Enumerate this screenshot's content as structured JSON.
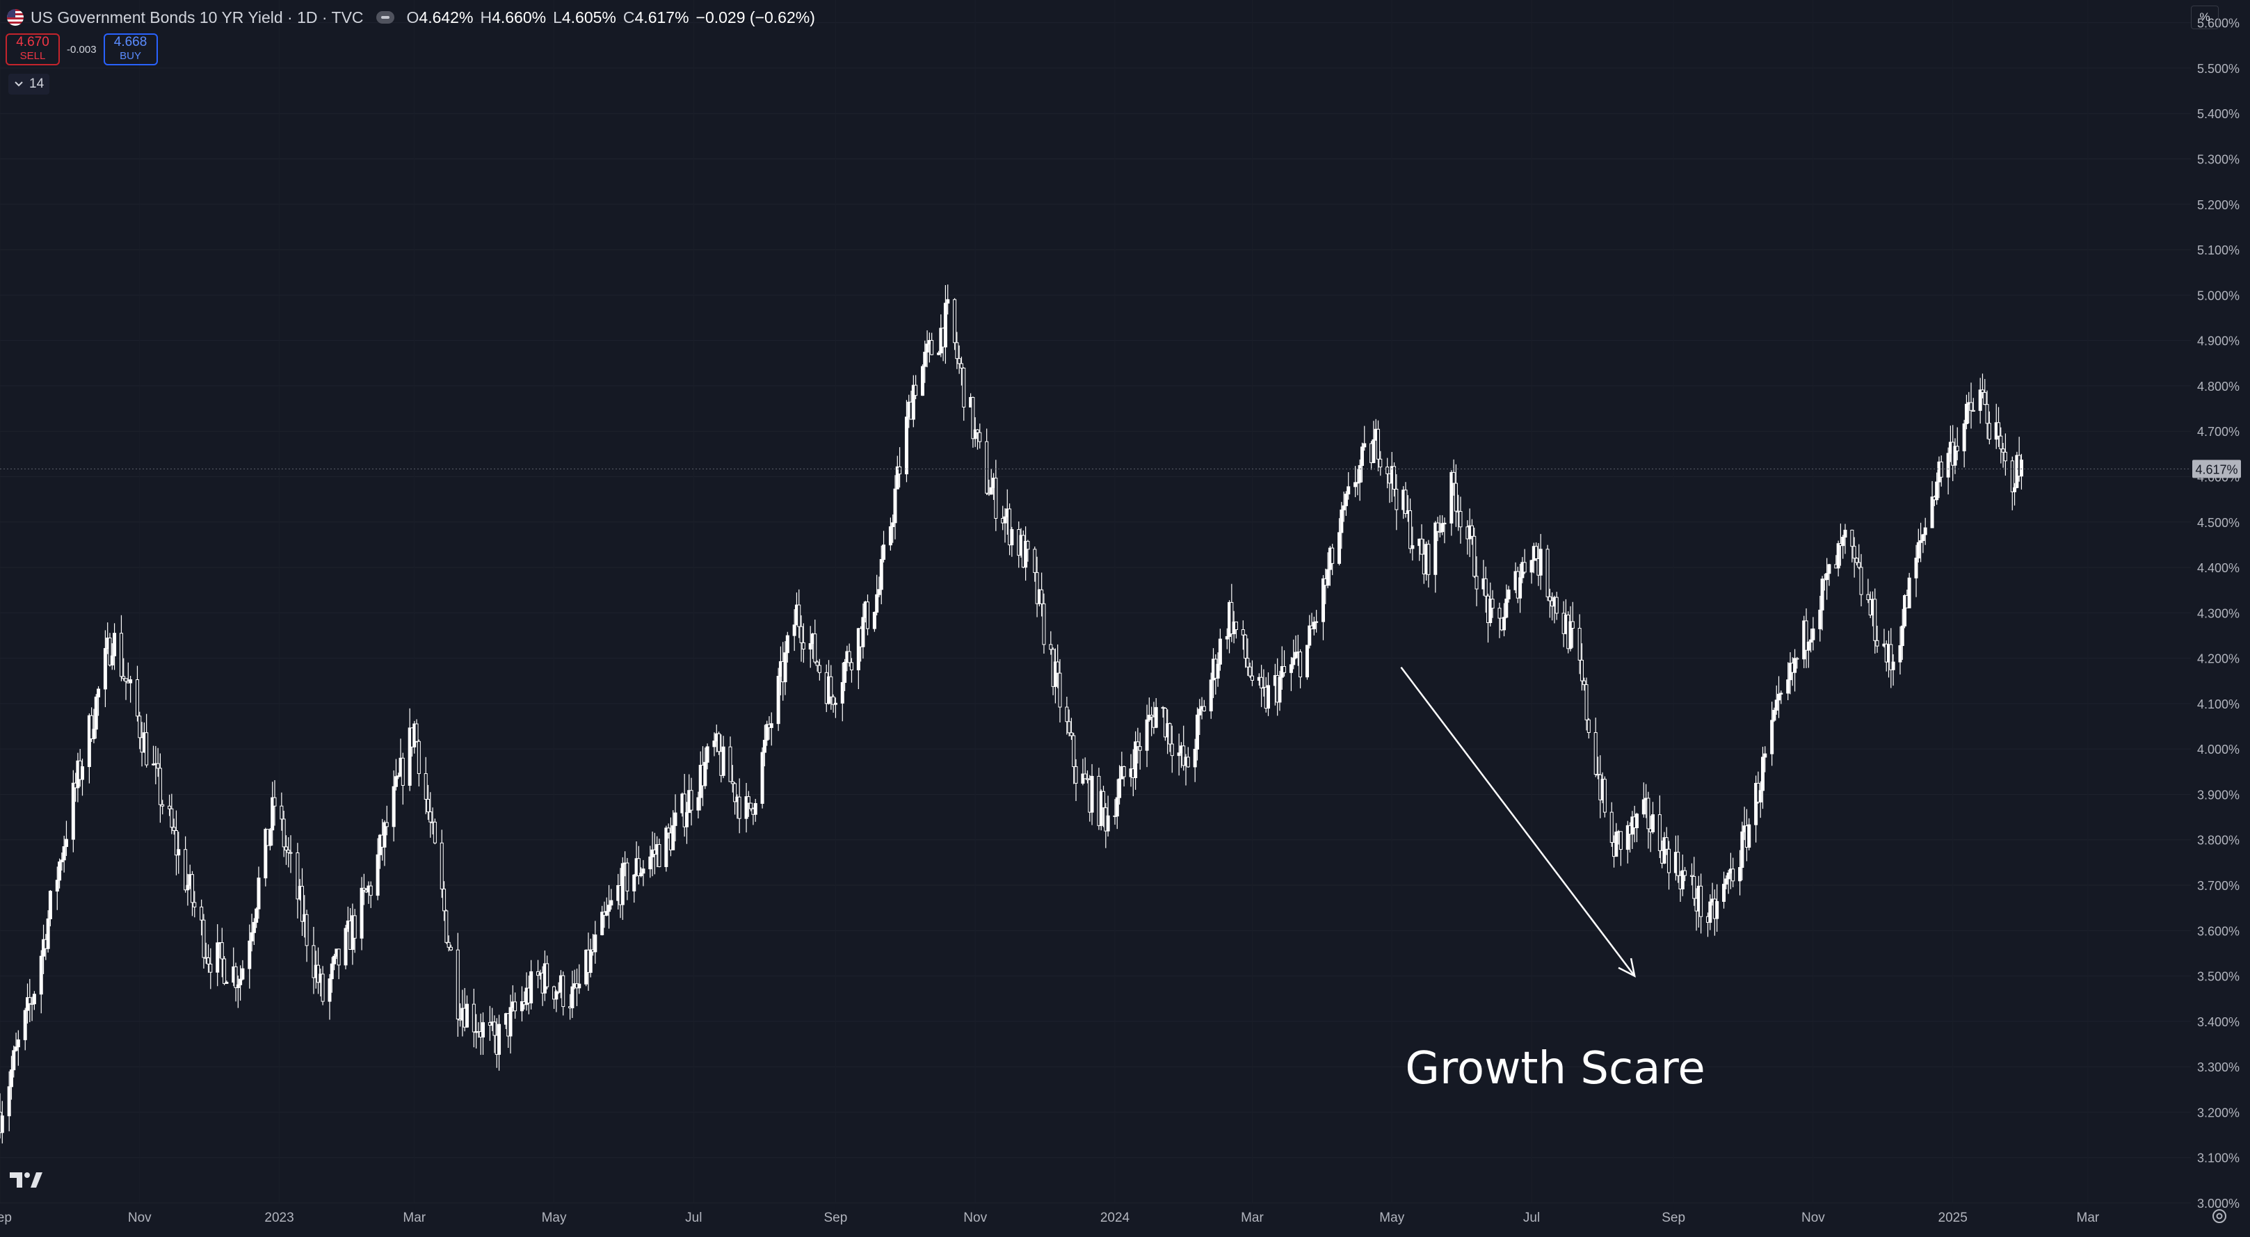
{
  "legend": {
    "title": "US Government Bonds 10 YR Yield · 1D · TVC",
    "open_label": "O",
    "open": "4.642%",
    "high_label": "H",
    "high": "4.660%",
    "low_label": "L",
    "low": "4.605%",
    "close_label": "C",
    "close": "4.617%",
    "change": "−0.029 (−0.62%)"
  },
  "trade": {
    "sell_price": "4.670",
    "sell_label": "SELL",
    "spread": "-0.003",
    "buy_price": "4.668",
    "buy_label": "BUY"
  },
  "indicators": {
    "count": "14"
  },
  "scale_mode": "%",
  "icons": [
    "us-flag-icon",
    "visibility-icon",
    "chevron-down-icon",
    "tradingview-logo-icon",
    "settings-icon"
  ],
  "colors": {
    "background": "#151924",
    "candles": "#ffffff",
    "annotation": "#ffffff",
    "price_label_bg": "#b2b5be"
  },
  "chart_data": {
    "type": "candlestick",
    "title": "US Government Bonds 10 YR Yield · 1D · TVC",
    "ylim": [
      3.0,
      5.65
    ],
    "y_ticks": [
      "3.000%",
      "3.100%",
      "3.200%",
      "3.300%",
      "3.400%",
      "3.500%",
      "3.600%",
      "3.700%",
      "3.800%",
      "3.900%",
      "4.000%",
      "4.100%",
      "4.200%",
      "4.300%",
      "4.400%",
      "4.500%",
      "4.600%",
      "4.700%",
      "4.800%",
      "4.900%",
      "5.000%",
      "5.100%",
      "5.200%",
      "5.300%",
      "5.400%",
      "5.500%",
      "5.600%"
    ],
    "x_range": [
      "2022-09-01",
      "2025-04-15"
    ],
    "x_ticks": [
      {
        "date": "2022-09-01",
        "label": "Sep"
      },
      {
        "date": "2022-11-01",
        "label": "Nov"
      },
      {
        "date": "2023-01-01",
        "label": "2023"
      },
      {
        "date": "2023-03-01",
        "label": "Mar"
      },
      {
        "date": "2023-05-01",
        "label": "May"
      },
      {
        "date": "2023-07-01",
        "label": "Jul"
      },
      {
        "date": "2023-09-01",
        "label": "Sep"
      },
      {
        "date": "2023-11-01",
        "label": "Nov"
      },
      {
        "date": "2024-01-01",
        "label": "2024"
      },
      {
        "date": "2024-03-01",
        "label": "Mar"
      },
      {
        "date": "2024-05-01",
        "label": "May"
      },
      {
        "date": "2024-07-01",
        "label": "Jul"
      },
      {
        "date": "2024-09-01",
        "label": "Sep"
      },
      {
        "date": "2024-11-01",
        "label": "Nov"
      },
      {
        "date": "2025-01-01",
        "label": "2025"
      },
      {
        "date": "2025-03-01",
        "label": "Mar"
      }
    ],
    "last_price": 4.617,
    "last_price_label": "4.617%",
    "trend_points": [
      [
        "2022-09-01",
        3.2
      ],
      [
        "2022-09-15",
        3.45
      ],
      [
        "2022-10-01",
        3.85
      ],
      [
        "2022-10-20",
        4.25
      ],
      [
        "2022-11-10",
        3.9
      ],
      [
        "2022-12-01",
        3.55
      ],
      [
        "2022-12-15",
        3.5
      ],
      [
        "2022-12-30",
        3.88
      ],
      [
        "2023-01-20",
        3.45
      ],
      [
        "2023-02-10",
        3.7
      ],
      [
        "2023-03-01",
        4.05
      ],
      [
        "2023-03-20",
        3.45
      ],
      [
        "2023-04-05",
        3.35
      ],
      [
        "2023-04-25",
        3.5
      ],
      [
        "2023-05-10",
        3.45
      ],
      [
        "2023-05-30",
        3.7
      ],
      [
        "2023-06-20",
        3.8
      ],
      [
        "2023-07-10",
        4.0
      ],
      [
        "2023-07-25",
        3.85
      ],
      [
        "2023-08-15",
        4.3
      ],
      [
        "2023-08-30",
        4.12
      ],
      [
        "2023-09-20",
        4.35
      ],
      [
        "2023-10-05",
        4.8
      ],
      [
        "2023-10-20",
        4.95
      ],
      [
        "2023-11-05",
        4.6
      ],
      [
        "2023-11-25",
        4.4
      ],
      [
        "2023-12-15",
        3.95
      ],
      [
        "2023-12-28",
        3.85
      ],
      [
        "2024-01-20",
        4.1
      ],
      [
        "2024-02-01",
        3.95
      ],
      [
        "2024-02-20",
        4.3
      ],
      [
        "2024-03-05",
        4.1
      ],
      [
        "2024-03-25",
        4.22
      ],
      [
        "2024-04-15",
        4.6
      ],
      [
        "2024-04-25",
        4.68
      ],
      [
        "2024-05-15",
        4.4
      ],
      [
        "2024-05-28",
        4.58
      ],
      [
        "2024-06-15",
        4.25
      ],
      [
        "2024-07-01",
        4.45
      ],
      [
        "2024-07-20",
        4.22
      ],
      [
        "2024-08-05",
        3.78
      ],
      [
        "2024-08-20",
        3.85
      ],
      [
        "2024-09-10",
        3.68
      ],
      [
        "2024-09-17",
        3.62
      ],
      [
        "2024-10-01",
        3.78
      ],
      [
        "2024-10-15",
        4.05
      ],
      [
        "2024-11-01",
        4.3
      ],
      [
        "2024-11-15",
        4.45
      ],
      [
        "2024-12-05",
        4.18
      ],
      [
        "2024-12-25",
        4.6
      ],
      [
        "2025-01-13",
        4.78
      ],
      [
        "2025-01-25",
        4.6
      ],
      [
        "2025-02-01",
        4.617
      ]
    ]
  },
  "annotation": {
    "text": "Growth Scare",
    "arrow_from": [
      "2024-05-05",
      4.18
    ],
    "arrow_to": [
      "2024-08-15",
      3.5
    ],
    "text_at": [
      "2024-05-05",
      3.3
    ]
  }
}
